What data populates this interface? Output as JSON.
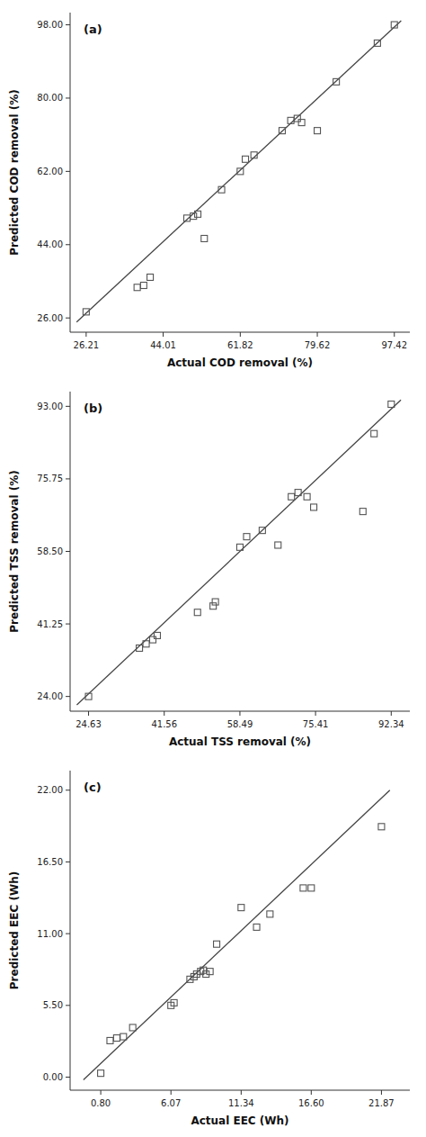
{
  "chart_data": [
    {
      "type": "scatter",
      "title": "(a)",
      "x_label": "Actual COD removal (%)",
      "y_label": "Predicted COD removal (%)",
      "grid": false,
      "series": [
        {
          "type": "line",
          "color": "#444444",
          "line_style": "solid",
          "x": [
            24.0,
            99.0
          ],
          "values": [
            25.0,
            99.0
          ]
        },
        {
          "type": "scatter",
          "color": "#555555",
          "marker": "square",
          "x": [
            26.21,
            38.0,
            39.5,
            41.0,
            49.5,
            51.0,
            52.0,
            53.5,
            57.5,
            61.82,
            63.0,
            65.0,
            71.5,
            73.5,
            75.0,
            76.0,
            79.62,
            84.0,
            97.42,
            93.5
          ],
          "values": [
            27.5,
            33.5,
            34.0,
            36.0,
            50.5,
            51.0,
            51.5,
            45.5,
            57.5,
            62.0,
            65.0,
            66.0,
            72.0,
            74.5,
            75.0,
            74.0,
            72.0,
            84.0,
            98.0,
            93.5
          ]
        }
      ],
      "xlim": [
        22.5,
        101.0
      ],
      "ylim": [
        22.5,
        101.0
      ],
      "xticks": [
        26.21,
        44.01,
        61.82,
        79.62,
        97.42
      ],
      "yticks": [
        {
          "value": 26,
          "label": "26.00"
        },
        {
          "value": 44,
          "label": "44.00"
        },
        {
          "value": 62,
          "label": "62.00"
        },
        {
          "value": 80,
          "label": "80.00"
        },
        {
          "value": 98,
          "label": "98.00"
        }
      ]
    },
    {
      "type": "scatter",
      "title": "(b)",
      "x_label": "Actual TSS removal (%)",
      "y_label": "Predicted TSS removal (%)",
      "grid": false,
      "series": [
        {
          "type": "line",
          "color": "#444444",
          "line_style": "solid",
          "x": [
            22.0,
            94.5
          ],
          "values": [
            22.0,
            94.5
          ]
        },
        {
          "type": "scatter",
          "color": "#555555",
          "marker": "square",
          "x": [
            24.63,
            36.0,
            37.5,
            39.0,
            40.0,
            49.0,
            52.5,
            53.0,
            58.49,
            60.0,
            63.5,
            67.0,
            70.0,
            71.5,
            73.5,
            75.0,
            86.0,
            88.5,
            92.34
          ],
          "values": [
            24.0,
            35.5,
            36.5,
            37.5,
            38.5,
            44.0,
            45.5,
            46.5,
            59.5,
            62.0,
            63.5,
            60.0,
            71.5,
            72.5,
            71.5,
            69.0,
            68.0,
            86.5,
            93.5
          ]
        }
      ],
      "xlim": [
        20.5,
        96.5
      ],
      "ylim": [
        20.5,
        96.5
      ],
      "xticks": [
        24.63,
        41.56,
        58.49,
        75.41,
        92.34
      ],
      "yticks": [
        {
          "value": 24,
          "label": "24.00"
        },
        41.25,
        {
          "value": 58.5,
          "label": "58.50"
        },
        75.75,
        {
          "value": 93,
          "label": "93.00"
        }
      ]
    },
    {
      "type": "scatter",
      "title": "(c)",
      "x_label": "Actual EEC (Wh)",
      "y_label": "Predicted EEC (Wh)",
      "grid": false,
      "series": [
        {
          "type": "line",
          "color": "#444444",
          "line_style": "solid",
          "x": [
            -0.5,
            22.5
          ],
          "values": [
            -0.2,
            22.0
          ]
        },
        {
          "type": "scatter",
          "color": "#555555",
          "marker": "square",
          "x": [
            0.8,
            1.5,
            2.0,
            2.5,
            3.2,
            6.07,
            6.3,
            7.5,
            7.8,
            8.0,
            8.3,
            8.5,
            8.7,
            9.0,
            9.5,
            11.34,
            12.5,
            13.5,
            16.0,
            16.6,
            21.87
          ],
          "values": [
            0.3,
            2.8,
            3.0,
            3.1,
            3.8,
            5.5,
            5.7,
            7.5,
            7.7,
            7.9,
            8.1,
            8.2,
            7.9,
            8.1,
            10.2,
            13.0,
            11.5,
            12.5,
            14.5,
            14.5,
            19.2
          ]
        }
      ],
      "xlim": [
        -1.5,
        24.0
      ],
      "ylim": [
        -1.0,
        23.5
      ],
      "xticks": [
        {
          "value": 0.8,
          "label": "0.80"
        },
        6.07,
        11.34,
        {
          "value": 16.6,
          "label": "16.60"
        },
        21.87
      ],
      "yticks": [
        {
          "value": 0,
          "label": "0.00"
        },
        {
          "value": 5.5,
          "label": "5.50"
        },
        {
          "value": 11,
          "label": "11.00"
        },
        {
          "value": 16.5,
          "label": "16.50"
        },
        {
          "value": 22,
          "label": "22.00"
        }
      ]
    }
  ]
}
